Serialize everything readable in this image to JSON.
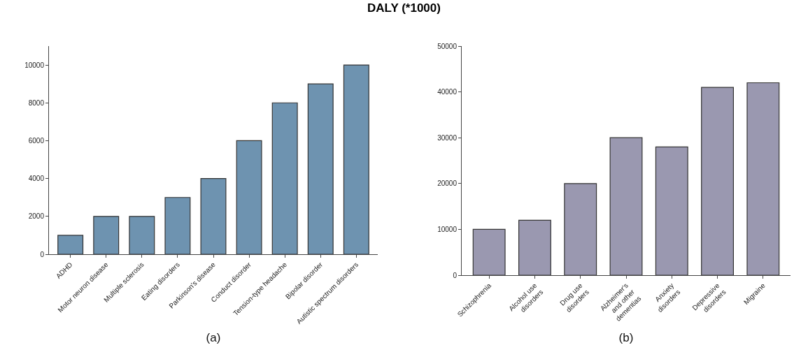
{
  "chart_data": [
    {
      "type": "bar",
      "title": "DALY (*1000)",
      "xlabel": "(a)",
      "categories": [
        "ADHD",
        "Motor neuron disease",
        "Multiple sclerosis",
        "Eating disorders",
        "Parkinson's disease",
        "Conduct disorder",
        "Tension-type headache",
        "Bipolar disorder",
        "Autistic spectrum disorders"
      ],
      "values": [
        1000,
        2000,
        2000,
        3000,
        4000,
        6000,
        8000,
        9000,
        10000
      ],
      "color": "#6e93b0",
      "ylim": [
        0,
        11000
      ],
      "yticks": [
        0,
        2000,
        4000,
        6000,
        8000,
        10000
      ],
      "grid": false
    },
    {
      "type": "bar",
      "xlabel": "(b)",
      "categories": [
        "Schizophrenia",
        "Alcohol use disorders",
        "Drug use disorders",
        "Alzheimer's and other dementias",
        "Anxiety disorders",
        "Depressive disorders",
        "Migraine"
      ],
      "values": [
        10000,
        12000,
        20000,
        30000,
        28000,
        41000,
        42000
      ],
      "color": "#9a98b0",
      "ylim": [
        0,
        50000
      ],
      "yticks": [
        0,
        10000,
        20000,
        30000,
        40000,
        50000
      ],
      "grid": false
    }
  ]
}
